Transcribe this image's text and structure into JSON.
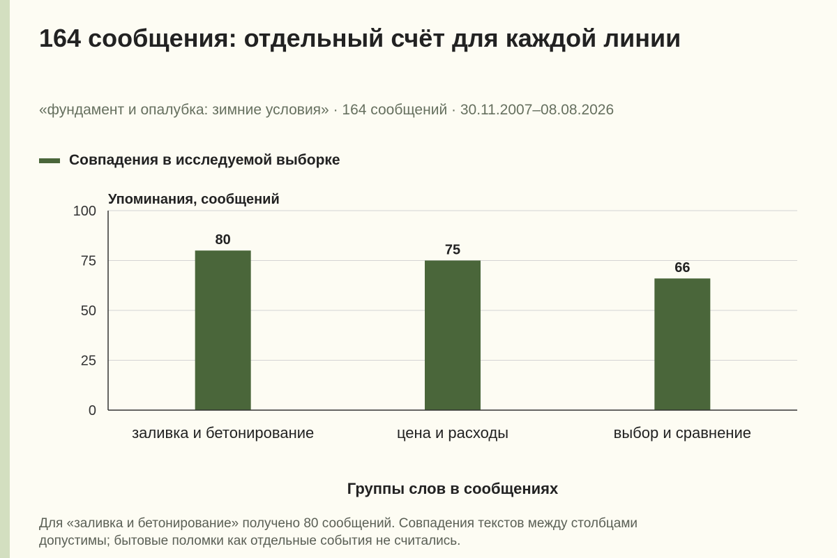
{
  "title": "164 сообщения: отдельный счёт для каждой линии",
  "subtitle": "«фундамент и опалубка: зимние условия» · 164 сообщений · 30.11.2007–08.08.2026",
  "colors": {
    "bar": "#4a663a",
    "background": "#fdfcf3",
    "stripe": "#d3dfc0",
    "grid": "#d4d4d4",
    "axis": "#333333"
  },
  "chart_data": {
    "type": "bar",
    "categories": [
      "заливка и бетонирование",
      "цена и расходы",
      "выбор и сравнение"
    ],
    "series": [
      {
        "name": "Совпадения в исследуемой выборке",
        "values": [
          80,
          75,
          66
        ]
      }
    ],
    "ylabel": "Упоминания, сообщений",
    "xlabel": "Группы слов в сообщениях",
    "ylim": [
      0,
      100
    ],
    "yticks": [
      0,
      25,
      50,
      75,
      100
    ],
    "grid": true,
    "legend": "top-left",
    "data_labels": true
  },
  "footnote": {
    "line1": "Для «заливка и бетонирование» получено 80 сообщений. Совпадения текстов между столбцами",
    "line2": "допустимы; бытовые поломки как отдельные события не считались."
  }
}
